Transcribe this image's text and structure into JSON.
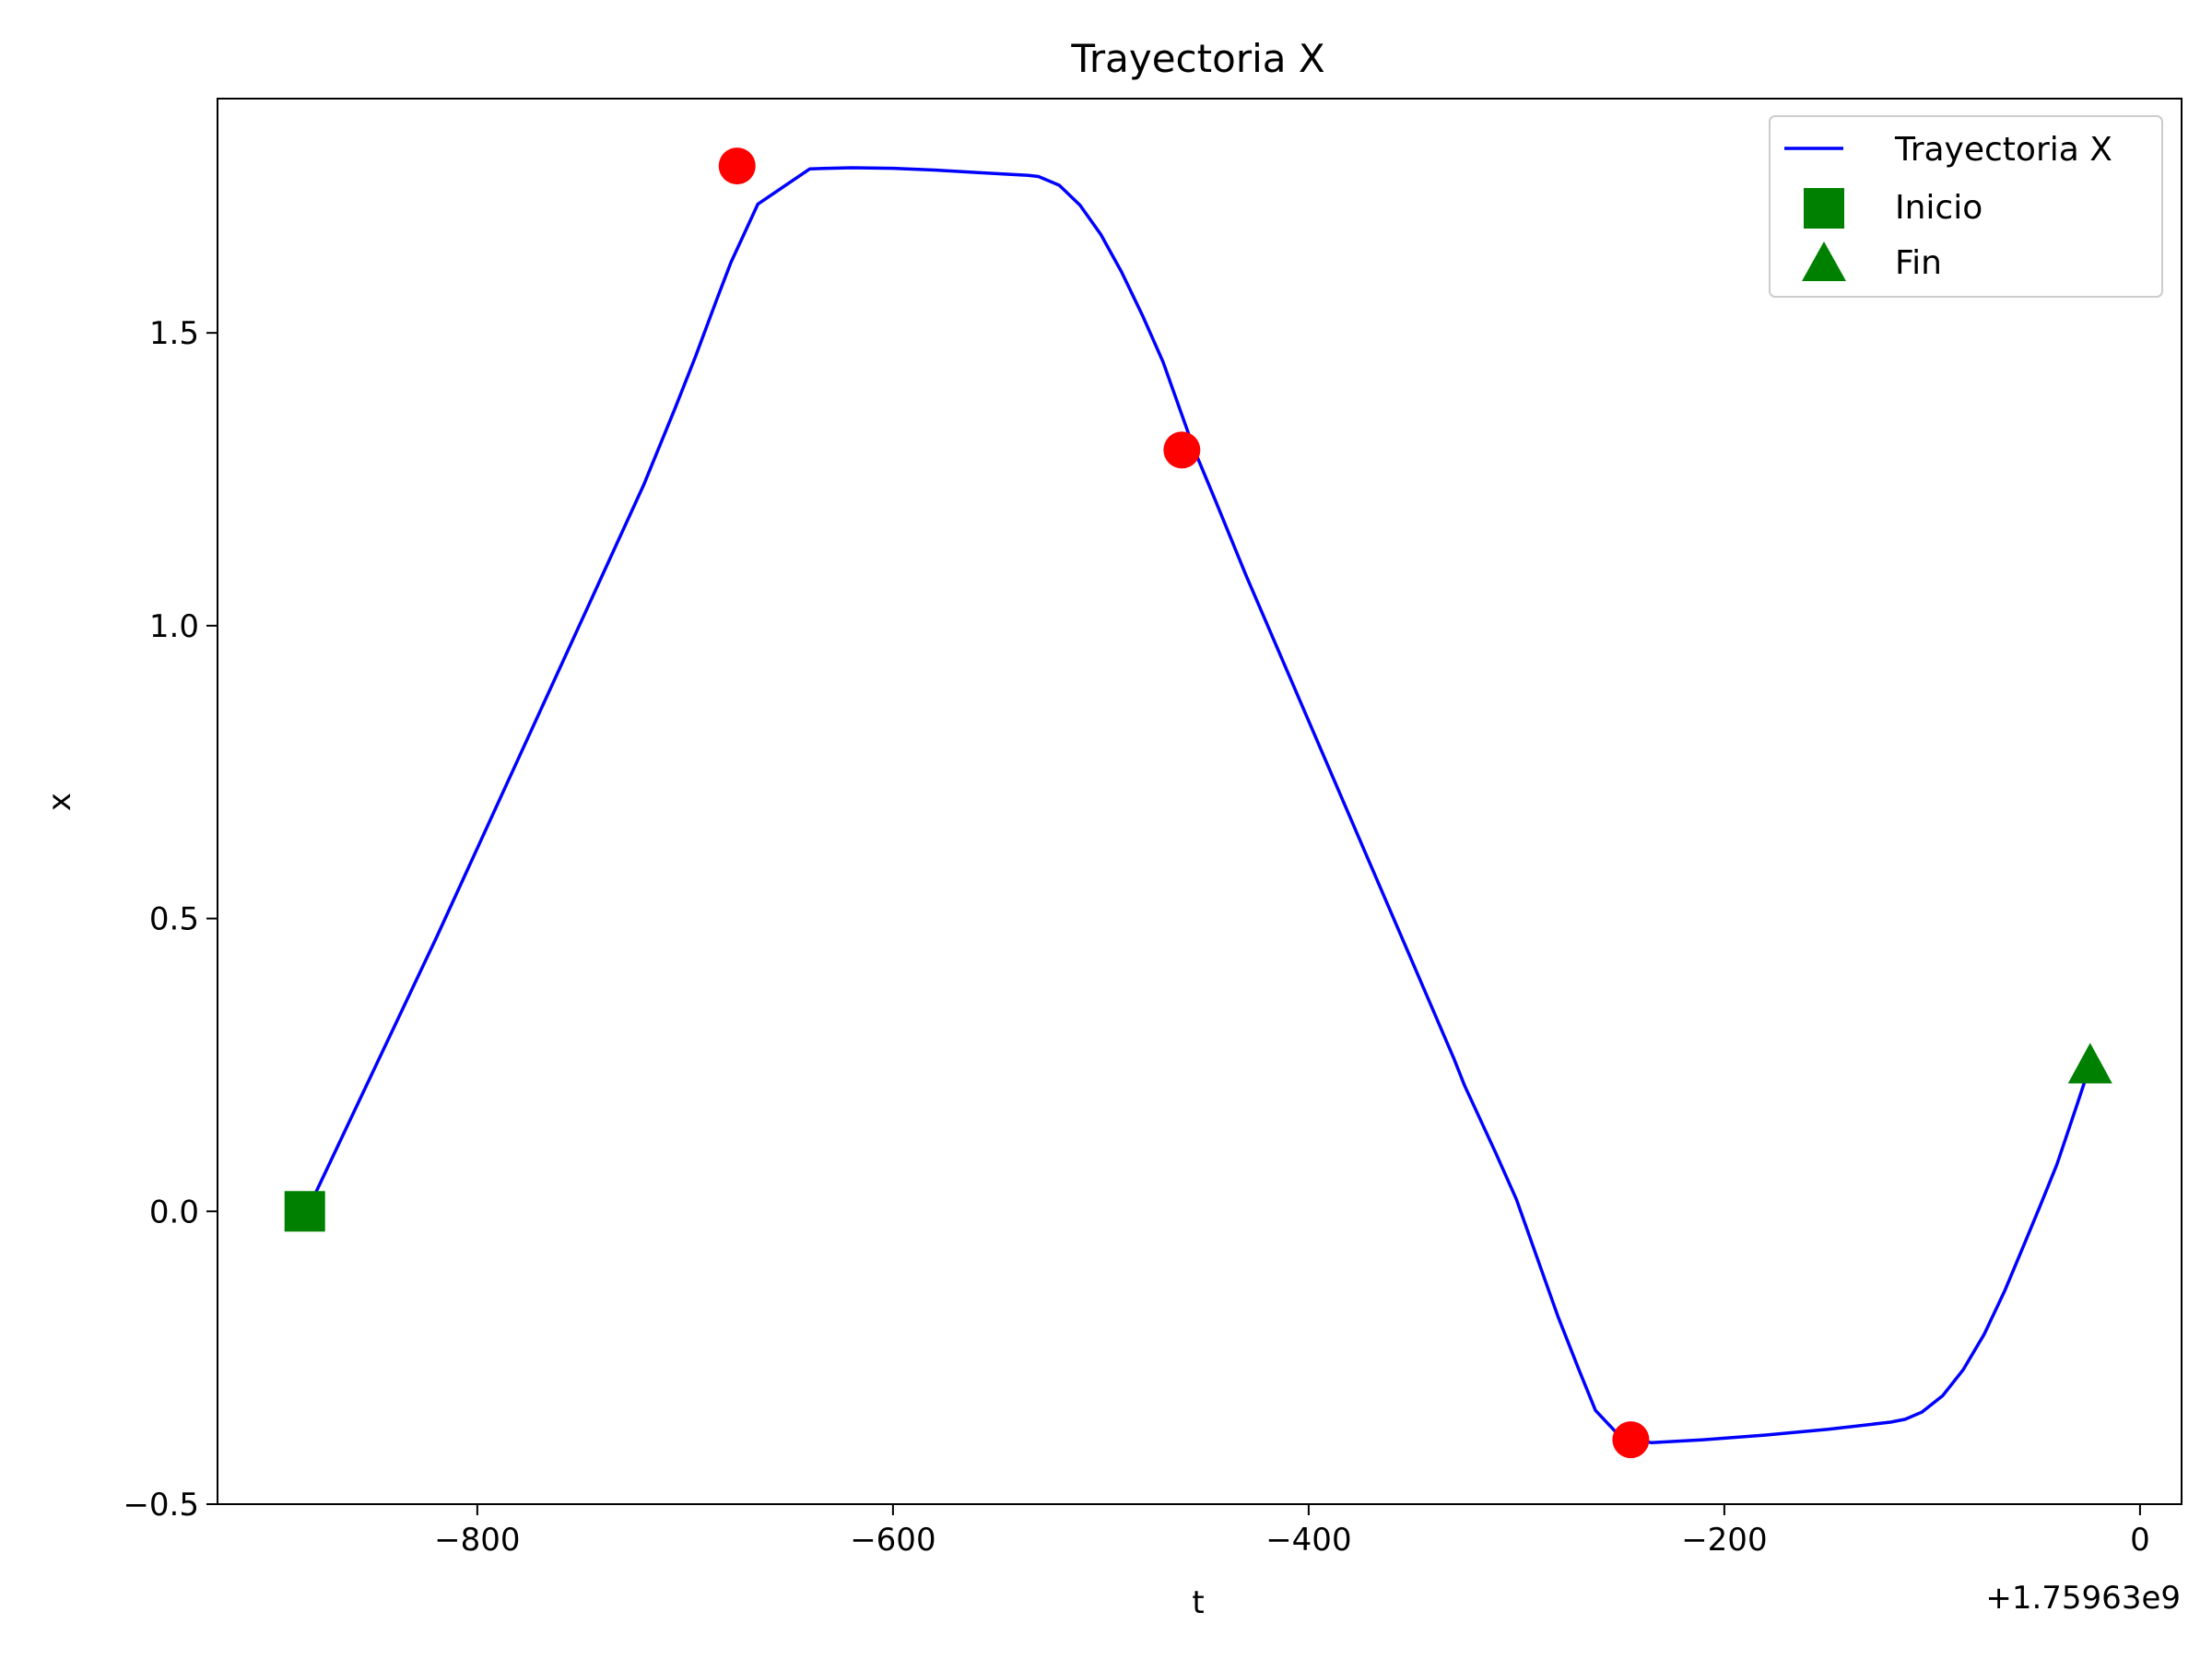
{
  "chart_data": {
    "type": "line",
    "title": "Trayectoria X",
    "xlabel": "t",
    "ylabel": "x",
    "x_offset_label": "+1.75963e9",
    "xlim": [
      -925,
      20
    ],
    "ylim": [
      -0.5,
      1.9
    ],
    "xticks": [
      -800,
      -600,
      -400,
      -200,
      0
    ],
    "xtick_labels": [
      "−800",
      "−600",
      "−400",
      "−200",
      "0"
    ],
    "yticks": [
      -0.5,
      0.0,
      0.5,
      1.0,
      1.5
    ],
    "ytick_labels": [
      "−0.5",
      "0.0",
      "0.5",
      "1.0",
      "1.5"
    ],
    "grid": false,
    "legend_position": "top-right",
    "series": [
      {
        "name": "Trayectoria X",
        "color": "#0000ff",
        "style": "line",
        "x": [
          -882,
          -860,
          -840,
          -820,
          -800,
          -780,
          -760,
          -740,
          -720,
          -705,
          -695,
          -685,
          -678,
          -665,
          -640,
          -620,
          -600,
          -580,
          -560,
          -545,
          -535,
          -530,
          -520,
          -510,
          -500,
          -490,
          -480,
          -470,
          -463,
          -455,
          -445,
          -430,
          -410,
          -390,
          -370,
          -350,
          -330,
          -325,
          -310,
          -300,
          -290,
          -280,
          -270,
          -262,
          -250,
          -235,
          -210,
          -180,
          -150,
          -120,
          -113,
          -105,
          -95,
          -85,
          -75,
          -65,
          -55,
          -48,
          -40,
          -30,
          -24
        ],
        "y": [
          0.0,
          0.165,
          0.315,
          0.465,
          0.62,
          0.775,
          0.93,
          1.085,
          1.24,
          1.37,
          1.46,
          1.555,
          1.62,
          1.72,
          1.78,
          1.782,
          1.781,
          1.778,
          1.774,
          1.771,
          1.769,
          1.767,
          1.752,
          1.718,
          1.668,
          1.604,
          1.53,
          1.45,
          1.38,
          1.3,
          1.215,
          1.085,
          0.92,
          0.755,
          0.59,
          0.425,
          0.26,
          0.215,
          0.1,
          0.02,
          -0.08,
          -0.18,
          -0.27,
          -0.34,
          -0.385,
          -0.395,
          -0.39,
          -0.382,
          -0.372,
          -0.36,
          -0.355,
          -0.343,
          -0.315,
          -0.27,
          -0.21,
          -0.135,
          -0.05,
          0.01,
          0.08,
          0.185,
          0.25
        ]
      },
      {
        "name": "",
        "color": "#ff0000",
        "style": "marker-circle",
        "x": [
          -675,
          -461,
          -245
        ],
        "y": [
          1.785,
          1.3,
          -0.39
        ]
      },
      {
        "name": "Inicio",
        "color": "#008000",
        "style": "marker-square",
        "x": [
          -883
        ],
        "y": [
          0.0
        ]
      },
      {
        "name": "Fin",
        "color": "#008000",
        "style": "marker-triangle",
        "x": [
          -24
        ],
        "y": [
          0.25
        ]
      }
    ]
  }
}
